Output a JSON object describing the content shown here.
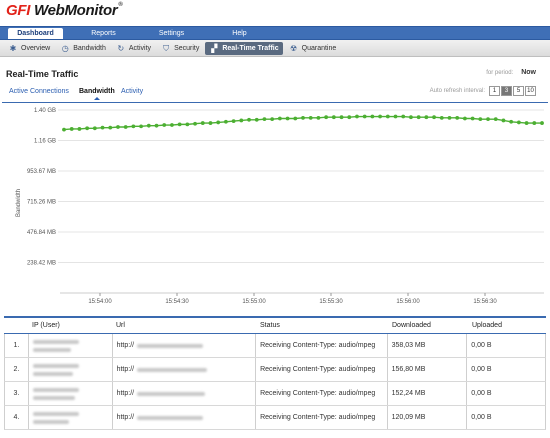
{
  "logo": {
    "brand_a": "GFI",
    "brand_b": "WebMonitor",
    "mark": "®"
  },
  "main_nav": [
    {
      "label": "Dashboard",
      "active": true
    },
    {
      "label": "Reports",
      "active": false
    },
    {
      "label": "Settings",
      "active": false
    },
    {
      "label": "Help",
      "active": false
    }
  ],
  "sub_nav": [
    {
      "label": "Overview",
      "icon": "overview-icon",
      "active": false
    },
    {
      "label": "Bandwidth",
      "icon": "bandwidth-icon",
      "active": false
    },
    {
      "label": "Activity",
      "icon": "activity-icon",
      "active": false
    },
    {
      "label": "Security",
      "icon": "security-icon",
      "active": false
    },
    {
      "label": "Real-Time Traffic",
      "icon": "realtime-icon",
      "active": true
    },
    {
      "label": "Quarantine",
      "icon": "quarantine-icon",
      "active": false
    }
  ],
  "page": {
    "title": "Real-Time Traffic",
    "period_label": "for period:",
    "period_value": "Now"
  },
  "content_tabs": [
    {
      "label": "Active Connections",
      "active": false
    },
    {
      "label": "Bandwidth",
      "active": true
    },
    {
      "label": "Activity",
      "active": false
    }
  ],
  "refresh": {
    "label": "Auto refresh interval:",
    "options": [
      "1",
      "3",
      "5",
      "10"
    ],
    "selected": "3"
  },
  "chart_data": {
    "type": "line",
    "ylabel": "Bandwidth",
    "y_ticks": [
      "1.40 GB",
      "1.16 GB",
      "953.67 MB",
      "715.26 MB",
      "476.84 MB",
      "238.42 MB"
    ],
    "x_ticks": [
      "15:54:00",
      "15:54:30",
      "15:55:00",
      "15:55:30",
      "15:56:00",
      "15:56:30"
    ],
    "ylim_gb": [
      0,
      1.4
    ],
    "series_color": "#4caf32",
    "values_gb": [
      1.25,
      1.255,
      1.255,
      1.26,
      1.26,
      1.265,
      1.265,
      1.27,
      1.27,
      1.275,
      1.275,
      1.28,
      1.28,
      1.285,
      1.285,
      1.29,
      1.29,
      1.295,
      1.3,
      1.3,
      1.305,
      1.31,
      1.315,
      1.32,
      1.325,
      1.325,
      1.33,
      1.33,
      1.335,
      1.335,
      1.335,
      1.34,
      1.34,
      1.34,
      1.345,
      1.345,
      1.345,
      1.345,
      1.35,
      1.35,
      1.35,
      1.35,
      1.35,
      1.35,
      1.35,
      1.345,
      1.345,
      1.345,
      1.345,
      1.34,
      1.34,
      1.34,
      1.335,
      1.335,
      1.33,
      1.33,
      1.33,
      1.32,
      1.31,
      1.305,
      1.3,
      1.3,
      1.3
    ]
  },
  "table": {
    "headers": [
      "",
      "IP (User)",
      "Url",
      "Status",
      "Downloaded",
      "Uploaded"
    ],
    "rows": [
      {
        "n": "1.",
        "url_prefix": "http://",
        "status": "Receiving Content-Type: audio/mpeg",
        "downloaded": "358,03 MB",
        "uploaded": "0,00 B"
      },
      {
        "n": "2.",
        "url_prefix": "http://",
        "status": "Receiving Content-Type: audio/mpeg",
        "downloaded": "156,80 MB",
        "uploaded": "0,00 B"
      },
      {
        "n": "3.",
        "url_prefix": "http://",
        "status": "Receiving Content-Type: audio/mpeg",
        "downloaded": "152,24 MB",
        "uploaded": "0,00 B"
      },
      {
        "n": "4.",
        "url_prefix": "http://",
        "status": "Receiving Content-Type: audio/mpeg",
        "downloaded": "120,09 MB",
        "uploaded": "0,00 B"
      }
    ]
  }
}
